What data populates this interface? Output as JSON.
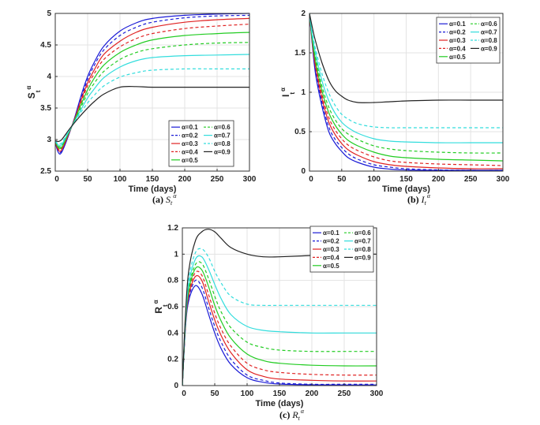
{
  "chart_data": [
    {
      "type": "line",
      "caption_label": "(a)",
      "caption_symbol": {
        "main": "S",
        "sub": "t",
        "sup": "α"
      },
      "ylabel": {
        "main": "S",
        "sub": "t",
        "sup": "α"
      },
      "xlabel": "Time (days)",
      "xlim": [
        0,
        300
      ],
      "ylim": [
        2.5,
        5
      ],
      "xticks": [
        0,
        50,
        100,
        150,
        200,
        250,
        300
      ],
      "yticks": [
        2.5,
        3,
        3.5,
        4,
        4.5,
        5
      ],
      "grid": true,
      "legend_position": "bottom-right",
      "x": [
        0,
        5,
        10,
        20,
        30,
        40,
        50,
        60,
        75,
        100,
        125,
        150,
        200,
        250,
        300
      ],
      "series": [
        {
          "name": "α=0.1",
          "color": "#1a1ad6",
          "dash": false,
          "values": [
            2.95,
            2.79,
            2.8,
            3.05,
            3.35,
            3.7,
            4.0,
            4.22,
            4.48,
            4.72,
            4.85,
            4.92,
            4.97,
            4.99,
            5.0
          ]
        },
        {
          "name": "α=0.2",
          "color": "#1a1ad6",
          "dash": true,
          "values": [
            2.95,
            2.81,
            2.82,
            3.06,
            3.34,
            3.66,
            3.95,
            4.17,
            4.42,
            4.65,
            4.78,
            4.86,
            4.93,
            4.96,
            4.97
          ]
        },
        {
          "name": "α=0.3",
          "color": "#e02222",
          "dash": false,
          "values": [
            2.96,
            2.83,
            2.84,
            3.07,
            3.33,
            3.63,
            3.9,
            4.1,
            4.35,
            4.56,
            4.7,
            4.78,
            4.86,
            4.9,
            4.92
          ]
        },
        {
          "name": "α=0.4",
          "color": "#e02222",
          "dash": true,
          "values": [
            2.96,
            2.85,
            2.86,
            3.08,
            3.32,
            3.6,
            3.85,
            4.04,
            4.27,
            4.47,
            4.6,
            4.68,
            4.76,
            4.8,
            4.83
          ]
        },
        {
          "name": "α=0.5",
          "color": "#22cc22",
          "dash": false,
          "values": [
            2.97,
            2.87,
            2.88,
            3.09,
            3.31,
            3.56,
            3.79,
            3.97,
            4.18,
            4.38,
            4.5,
            4.58,
            4.65,
            4.68,
            4.7
          ]
        },
        {
          "name": "α=0.6",
          "color": "#22cc22",
          "dash": true,
          "values": [
            2.97,
            2.89,
            2.9,
            3.1,
            3.3,
            3.52,
            3.73,
            3.89,
            4.08,
            4.27,
            4.38,
            4.44,
            4.5,
            4.53,
            4.54
          ]
        },
        {
          "name": "α=0.7",
          "color": "#33dddd",
          "dash": false,
          "values": [
            2.97,
            2.91,
            2.92,
            3.11,
            3.29,
            3.48,
            3.66,
            3.8,
            3.98,
            4.15,
            4.25,
            4.3,
            4.33,
            4.34,
            4.35
          ]
        },
        {
          "name": "α=0.8",
          "color": "#33dddd",
          "dash": true,
          "values": [
            2.98,
            2.93,
            2.95,
            3.12,
            3.28,
            3.44,
            3.58,
            3.7,
            3.85,
            3.99,
            4.06,
            4.1,
            4.12,
            4.12,
            4.12
          ]
        },
        {
          "name": "α=0.9",
          "color": "#222222",
          "dash": false,
          "values": [
            2.98,
            2.97,
            3.0,
            3.14,
            3.27,
            3.39,
            3.5,
            3.6,
            3.72,
            3.83,
            3.84,
            3.83,
            3.83,
            3.83,
            3.83
          ]
        }
      ]
    },
    {
      "type": "line",
      "caption_label": "(b)",
      "caption_symbol": {
        "main": "I",
        "sub": "t",
        "sup": "α"
      },
      "ylabel": {
        "main": "I",
        "sub": "t",
        "sup": "α"
      },
      "xlabel": "Time (days)",
      "xlim": [
        0,
        300
      ],
      "ylim": [
        0,
        2
      ],
      "xticks": [
        0,
        50,
        100,
        150,
        200,
        250,
        300
      ],
      "yticks": [
        0,
        0.5,
        1,
        1.5,
        2
      ],
      "grid": true,
      "legend_position": "top-right",
      "x": [
        0,
        5,
        10,
        20,
        30,
        40,
        50,
        60,
        75,
        100,
        125,
        150,
        200,
        250,
        300
      ],
      "series": [
        {
          "name": "α=0.1",
          "color": "#1a1ad6",
          "dash": false,
          "values": [
            2,
            1.55,
            1.2,
            0.8,
            0.5,
            0.35,
            0.25,
            0.17,
            0.11,
            0.05,
            0.025,
            0.015,
            0.01,
            0.01,
            0.01
          ]
        },
        {
          "name": "α=0.2",
          "color": "#1a1ad6",
          "dash": true,
          "values": [
            2,
            1.57,
            1.25,
            0.85,
            0.56,
            0.4,
            0.3,
            0.22,
            0.15,
            0.08,
            0.05,
            0.03,
            0.015,
            0.01,
            0.01
          ]
        },
        {
          "name": "α=0.3",
          "color": "#e02222",
          "dash": false,
          "values": [
            2,
            1.59,
            1.29,
            0.9,
            0.62,
            0.46,
            0.35,
            0.27,
            0.2,
            0.12,
            0.08,
            0.06,
            0.04,
            0.03,
            0.03
          ]
        },
        {
          "name": "α=0.4",
          "color": "#e02222",
          "dash": true,
          "values": [
            2,
            1.61,
            1.33,
            0.95,
            0.68,
            0.52,
            0.41,
            0.33,
            0.26,
            0.18,
            0.13,
            0.11,
            0.09,
            0.08,
            0.07
          ]
        },
        {
          "name": "α=0.5",
          "color": "#22cc22",
          "dash": false,
          "values": [
            2,
            1.63,
            1.37,
            1.0,
            0.74,
            0.58,
            0.47,
            0.39,
            0.32,
            0.24,
            0.19,
            0.17,
            0.15,
            0.14,
            0.13
          ]
        },
        {
          "name": "α=0.6",
          "color": "#22cc22",
          "dash": true,
          "values": [
            2,
            1.66,
            1.42,
            1.06,
            0.81,
            0.65,
            0.54,
            0.47,
            0.4,
            0.32,
            0.28,
            0.26,
            0.24,
            0.23,
            0.23
          ]
        },
        {
          "name": "α=0.7",
          "color": "#33dddd",
          "dash": false,
          "values": [
            2,
            1.69,
            1.47,
            1.13,
            0.89,
            0.73,
            0.62,
            0.55,
            0.48,
            0.41,
            0.38,
            0.37,
            0.36,
            0.36,
            0.36
          ]
        },
        {
          "name": "α=0.8",
          "color": "#33dddd",
          "dash": true,
          "values": [
            2,
            1.73,
            1.53,
            1.22,
            0.99,
            0.83,
            0.72,
            0.66,
            0.6,
            0.56,
            0.55,
            0.55,
            0.55,
            0.55,
            0.55
          ]
        },
        {
          "name": "α=0.9",
          "color": "#222222",
          "dash": false,
          "values": [
            2,
            1.8,
            1.63,
            1.36,
            1.15,
            1.02,
            0.95,
            0.9,
            0.87,
            0.87,
            0.88,
            0.89,
            0.9,
            0.9,
            0.9
          ]
        }
      ]
    },
    {
      "type": "line",
      "caption_label": "(c)",
      "caption_symbol": {
        "main": "R",
        "sub": "t",
        "sup": "α"
      },
      "ylabel": {
        "main": "R",
        "sub": "t",
        "sup": "α"
      },
      "xlabel": "Time (days)",
      "xlim": [
        0,
        300
      ],
      "ylim": [
        0,
        1.2
      ],
      "xticks": [
        0,
        50,
        100,
        150,
        200,
        250,
        300
      ],
      "yticks": [
        0,
        0.2,
        0.4,
        0.6,
        0.8,
        1,
        1.2
      ],
      "grid": true,
      "legend_position": "top-right",
      "x": [
        0,
        5,
        10,
        20,
        30,
        40,
        50,
        60,
        75,
        100,
        125,
        150,
        200,
        250,
        300
      ],
      "series": [
        {
          "name": "α=0.1",
          "color": "#1a1ad6",
          "dash": false,
          "values": [
            0,
            0.45,
            0.65,
            0.76,
            0.7,
            0.55,
            0.4,
            0.28,
            0.16,
            0.06,
            0.025,
            0.012,
            0.006,
            0.005,
            0.005
          ]
        },
        {
          "name": "α=0.2",
          "color": "#1a1ad6",
          "dash": true,
          "values": [
            0,
            0.46,
            0.67,
            0.8,
            0.75,
            0.6,
            0.45,
            0.33,
            0.2,
            0.08,
            0.04,
            0.02,
            0.01,
            0.01,
            0.01
          ]
        },
        {
          "name": "α=0.3",
          "color": "#e02222",
          "dash": false,
          "values": [
            0,
            0.47,
            0.69,
            0.83,
            0.8,
            0.65,
            0.5,
            0.38,
            0.25,
            0.12,
            0.07,
            0.05,
            0.04,
            0.035,
            0.035
          ]
        },
        {
          "name": "α=0.4",
          "color": "#e02222",
          "dash": true,
          "values": [
            0,
            0.48,
            0.71,
            0.86,
            0.84,
            0.7,
            0.55,
            0.43,
            0.3,
            0.17,
            0.12,
            0.1,
            0.085,
            0.08,
            0.08
          ]
        },
        {
          "name": "α=0.5",
          "color": "#22cc22",
          "dash": false,
          "values": [
            0,
            0.49,
            0.73,
            0.89,
            0.88,
            0.76,
            0.61,
            0.49,
            0.36,
            0.24,
            0.19,
            0.17,
            0.155,
            0.15,
            0.15
          ]
        },
        {
          "name": "α=0.6",
          "color": "#22cc22",
          "dash": true,
          "values": [
            0,
            0.5,
            0.75,
            0.92,
            0.93,
            0.82,
            0.68,
            0.56,
            0.44,
            0.33,
            0.29,
            0.27,
            0.26,
            0.26,
            0.26
          ]
        },
        {
          "name": "α=0.7",
          "color": "#33dddd",
          "dash": false,
          "values": [
            0,
            0.51,
            0.78,
            0.96,
            0.98,
            0.89,
            0.77,
            0.66,
            0.54,
            0.45,
            0.42,
            0.41,
            0.4,
            0.4,
            0.4
          ]
        },
        {
          "name": "α=0.8",
          "color": "#33dddd",
          "dash": true,
          "values": [
            0,
            0.53,
            0.82,
            1.01,
            1.04,
            0.98,
            0.87,
            0.78,
            0.68,
            0.62,
            0.61,
            0.61,
            0.61,
            0.61,
            0.61
          ]
        },
        {
          "name": "α=0.9",
          "color": "#222222",
          "dash": false,
          "values": [
            0,
            0.56,
            0.88,
            1.1,
            1.17,
            1.19,
            1.17,
            1.12,
            1.05,
            1.0,
            0.98,
            0.98,
            0.99,
            1.0,
            1.0
          ]
        }
      ]
    }
  ]
}
